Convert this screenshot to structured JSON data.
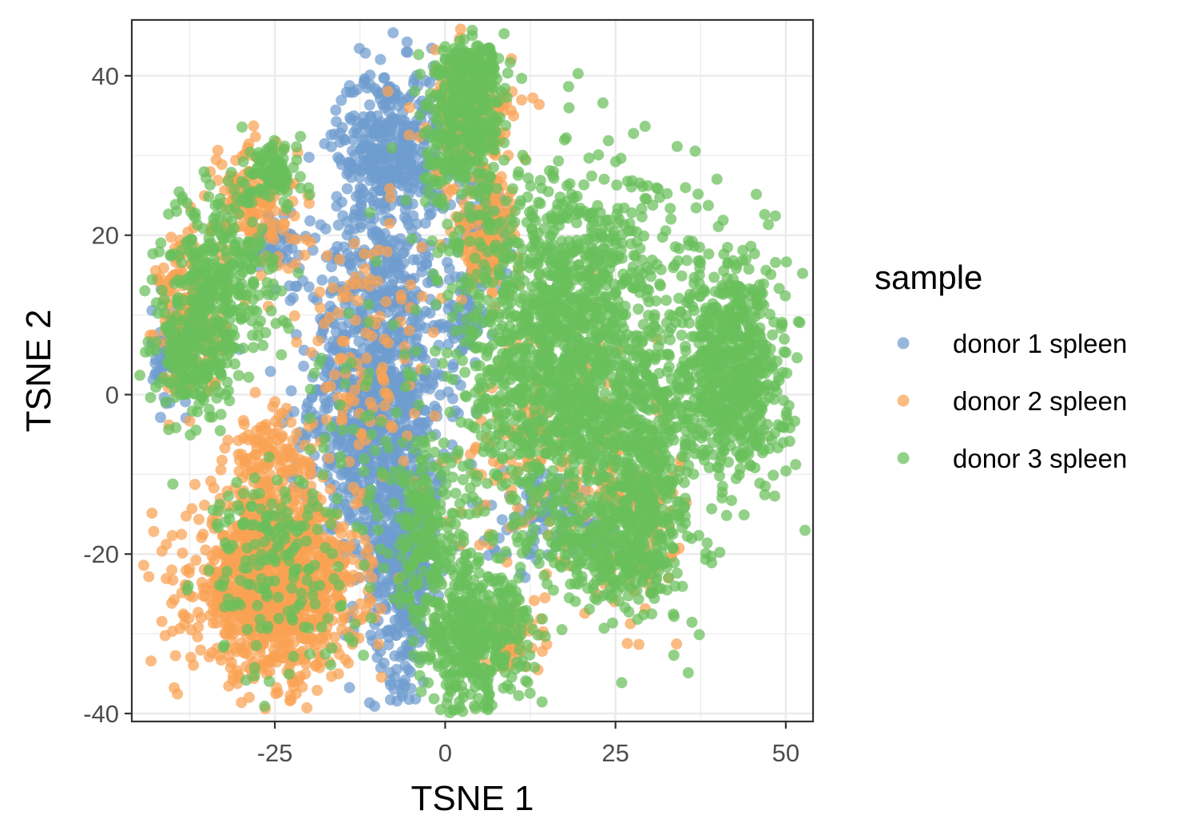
{
  "chart_data": {
    "type": "scatter",
    "xlabel": "TSNE 1",
    "ylabel": "TSNE 2",
    "xlim": [
      -46,
      54
    ],
    "ylim": [
      -41,
      47
    ],
    "x_ticks": [
      -25,
      0,
      25,
      50
    ],
    "y_ticks": [
      -40,
      -20,
      0,
      20,
      40
    ],
    "x_tick_labels": [
      "-25",
      "0",
      "25",
      "50"
    ],
    "y_tick_labels": [
      "-40",
      "-20",
      "0",
      "20",
      "40"
    ],
    "grid": true,
    "legend": {
      "title": "sample",
      "position": "right",
      "entries": [
        "donor 1 spleen",
        "donor 2 spleen",
        "donor 3 spleen"
      ]
    },
    "series": [
      {
        "name": "donor 1 spleen",
        "color": "#6f9ccf",
        "clusters": [
          {
            "cx": -10,
            "cy": 0,
            "sx": 5,
            "sy": 12,
            "n": 1100
          },
          {
            "cx": -6,
            "cy": -22,
            "sx": 2.5,
            "sy": 7,
            "n": 350
          },
          {
            "cx": -8,
            "cy": 31,
            "sx": 4,
            "sy": 5,
            "n": 400
          },
          {
            "cx": -40,
            "cy": 5,
            "sx": 1.5,
            "sy": 3,
            "n": 90
          },
          {
            "cx": -25,
            "cy": 19,
            "sx": 1.5,
            "sy": 2,
            "n": 60
          },
          {
            "cx": 15,
            "cy": -15,
            "sx": 5,
            "sy": 3,
            "n": 100
          },
          {
            "cx": 6,
            "cy": 21,
            "sx": 2,
            "sy": 3,
            "n": 80
          },
          {
            "cx": 3,
            "cy": 10,
            "sx": 1.5,
            "sy": 3,
            "n": 60
          }
        ]
      },
      {
        "name": "donor 2 spleen",
        "color": "#f9a253",
        "clusters": [
          {
            "cx": -25,
            "cy": -24,
            "sx": 6,
            "sy": 5.5,
            "n": 1200
          },
          {
            "cx": -28,
            "cy": 24,
            "sx": 3,
            "sy": 4,
            "n": 150
          },
          {
            "cx": -37,
            "cy": 10,
            "sx": 2.5,
            "sy": 5,
            "n": 200
          },
          {
            "cx": -26,
            "cy": -8,
            "sx": 3,
            "sy": 3,
            "n": 120
          },
          {
            "cx": 4,
            "cy": 35,
            "sx": 3,
            "sy": 4,
            "n": 200
          },
          {
            "cx": 6,
            "cy": 20,
            "sx": 2.5,
            "sy": 4,
            "n": 150
          },
          {
            "cx": 16,
            "cy": -5,
            "sx": 7,
            "sy": 8,
            "n": 200
          },
          {
            "cx": 28,
            "cy": -15,
            "sx": 3,
            "sy": 6,
            "n": 120
          },
          {
            "cx": -12,
            "cy": 5,
            "sx": 5,
            "sy": 10,
            "n": 120
          },
          {
            "cx": 8,
            "cy": -31,
            "sx": 3,
            "sy": 2,
            "n": 60
          }
        ]
      },
      {
        "name": "donor 3 spleen",
        "color": "#69bf5b",
        "clusters": [
          {
            "cx": 18,
            "cy": 5,
            "sx": 8,
            "sy": 12,
            "n": 1700
          },
          {
            "cx": 42,
            "cy": 3,
            "sx": 4,
            "sy": 7,
            "n": 700
          },
          {
            "cx": 30,
            "cy": -10,
            "sx": 3,
            "sy": 8,
            "n": 300
          },
          {
            "cx": 25,
            "cy": -20,
            "sx": 5,
            "sy": 3,
            "n": 250
          },
          {
            "cx": 4,
            "cy": -30,
            "sx": 4,
            "sy": 5,
            "n": 450
          },
          {
            "cx": -3,
            "cy": -18,
            "sx": 2.5,
            "sy": 6,
            "n": 200
          },
          {
            "cx": 3,
            "cy": 34,
            "sx": 3,
            "sy": 5,
            "n": 350
          },
          {
            "cx": 4,
            "cy": 41,
            "sx": 2,
            "sy": 1.5,
            "n": 100
          },
          {
            "cx": -33,
            "cy": 14,
            "sx": 4,
            "sy": 6,
            "n": 350
          },
          {
            "cx": -37,
            "cy": 5,
            "sx": 2.5,
            "sy": 4,
            "n": 200
          },
          {
            "cx": -25,
            "cy": 28,
            "sx": 2,
            "sy": 2,
            "n": 100
          },
          {
            "cx": -25,
            "cy": -17,
            "sx": 5,
            "sy": 4,
            "n": 120
          },
          {
            "cx": -23,
            "cy": -28,
            "sx": 6,
            "sy": 4,
            "n": 60
          },
          {
            "cx": -12,
            "cy": -5,
            "sx": 5,
            "sy": 12,
            "n": 50
          }
        ]
      }
    ]
  }
}
